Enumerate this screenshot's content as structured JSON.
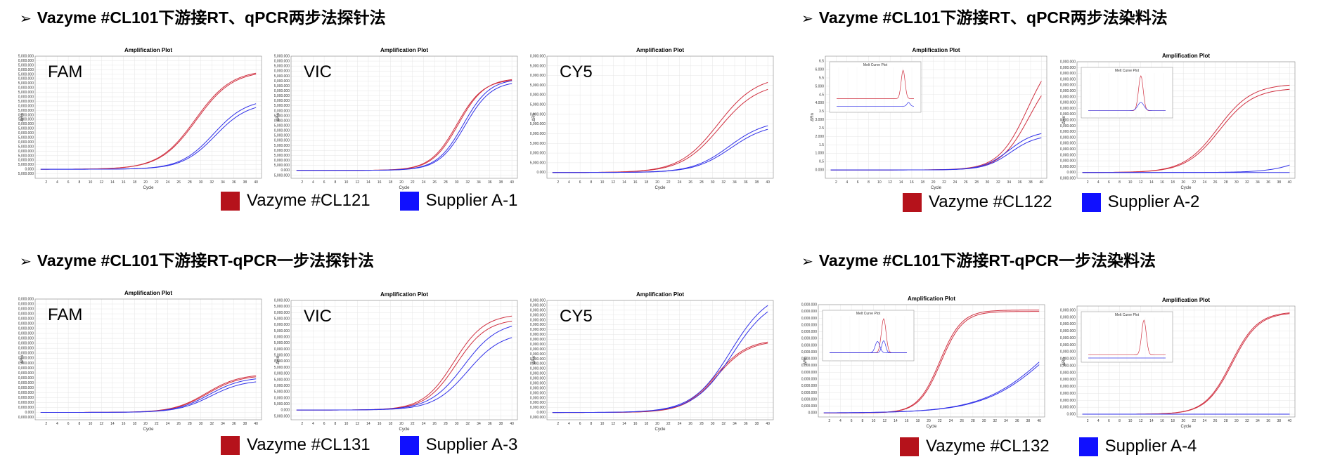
{
  "colors": {
    "vazyme": "#B5121B",
    "supplier": "#1010FF",
    "curve_red": "#D03040",
    "curve_blue": "#3030E8"
  },
  "headings": [
    {
      "text": "Vazyme #CL101下游接RT、qPCR两步法探针法"
    },
    {
      "text": "Vazyme #CL101下游接RT、qPCR两步法染料法"
    },
    {
      "text": "Vazyme #CL101下游接RT-qPCR一步法探针法"
    },
    {
      "text": "Vazyme #CL101下游接RT-qPCR一步法染料法"
    }
  ],
  "legends": [
    {
      "vazyme": "Vazyme #CL121",
      "supplier": "Supplier A-1"
    },
    {
      "vazyme": "Vazyme #CL122",
      "supplier": "Supplier A-2"
    },
    {
      "vazyme": "Vazyme #CL131",
      "supplier": "Supplier A-3"
    },
    {
      "vazyme": "Vazyme #CL132",
      "supplier": "Supplier A-4"
    }
  ],
  "chart_data": [
    {
      "type": "line",
      "title": "Amplification Plot",
      "xlabel": "Cycle",
      "ylabel": "ΔRn",
      "label": "FAM",
      "xlim": [
        0,
        41
      ],
      "ylim": [
        -10000,
        125000
      ],
      "yticks": [
        -5000,
        0,
        5000,
        10000,
        15000,
        20000,
        25000,
        30000,
        35000,
        40000,
        45000,
        50000,
        55000,
        60000,
        65000,
        70000,
        75000,
        80000,
        85000,
        90000,
        95000,
        100000,
        105000,
        110000,
        115000,
        120000,
        125000
      ],
      "series": [
        {
          "group": "vazyme",
          "plateau": 110000,
          "midpoint": 29.0,
          "slope": 3.3
        },
        {
          "group": "vazyme",
          "plateau": 109000,
          "midpoint": 29.2,
          "slope": 3.3
        },
        {
          "group": "supplier",
          "plateau": 78000,
          "midpoint": 32.3,
          "slope": 3.0
        },
        {
          "group": "supplier",
          "plateau": 74000,
          "midpoint": 32.6,
          "slope": 3.0
        }
      ]
    },
    {
      "type": "line",
      "title": "Amplification Plot",
      "xlabel": "Cycle",
      "ylabel": "ΔRn",
      "label": "VIC",
      "xlim": [
        0,
        41
      ],
      "ylim": [
        -8000,
        115000
      ],
      "yticks": [
        -5000,
        0,
        5000,
        10000,
        15000,
        20000,
        25000,
        30000,
        35000,
        40000,
        45000,
        50000,
        55000,
        60000,
        65000,
        70000,
        75000,
        80000,
        85000,
        90000,
        95000,
        100000,
        105000,
        110000,
        115000
      ],
      "series": [
        {
          "group": "vazyme",
          "plateau": 92000,
          "midpoint": 30.0,
          "slope": 2.4
        },
        {
          "group": "vazyme",
          "plateau": 93000,
          "midpoint": 30.3,
          "slope": 2.4
        },
        {
          "group": "supplier",
          "plateau": 92500,
          "midpoint": 31.2,
          "slope": 2.4
        },
        {
          "group": "supplier",
          "plateau": 90000,
          "midpoint": 31.5,
          "slope": 2.4
        }
      ]
    },
    {
      "type": "line",
      "title": "Amplification Plot",
      "xlabel": "Cycle",
      "ylabel": "ΔRn",
      "label": "CY5",
      "xlim": [
        0,
        41
      ],
      "ylim": [
        -15000,
        300000
      ],
      "yticks": [
        0,
        25000,
        50000,
        75000,
        100000,
        125000,
        150000,
        175000,
        200000,
        225000,
        250000,
        275000,
        300000
      ],
      "series": [
        {
          "group": "vazyme",
          "plateau": 250000,
          "midpoint": 31.0,
          "slope": 3.5
        },
        {
          "group": "vazyme",
          "plateau": 232000,
          "midpoint": 31.3,
          "slope": 3.5
        },
        {
          "group": "supplier",
          "plateau": 135000,
          "midpoint": 33.0,
          "slope": 3.3
        },
        {
          "group": "supplier",
          "plateau": 126000,
          "midpoint": 33.3,
          "slope": 3.3
        }
      ]
    },
    {
      "type": "line",
      "title": "Amplification Plot",
      "xlabel": "Cycle",
      "ylabel": "ΔRn",
      "label": "",
      "xlim": [
        0,
        41
      ],
      "ylim": [
        -0.5,
        6.8
      ],
      "yticks": [
        0,
        0.5,
        1,
        1.5,
        2,
        2.5,
        3,
        3.5,
        4,
        4.5,
        5,
        5.5,
        6,
        6.5
      ],
      "series": [
        {
          "group": "vazyme",
          "plateau": 7.4,
          "midpoint": 37.5,
          "slope": 2.7
        },
        {
          "group": "vazyme",
          "plateau": 6.4,
          "midpoint": 37.8,
          "slope": 2.7
        },
        {
          "group": "supplier",
          "plateau": 2.35,
          "midpoint": 34.0,
          "slope": 2.4
        },
        {
          "group": "supplier",
          "plateau": 2.1,
          "midpoint": 34.3,
          "slope": 2.4
        }
      ],
      "inset": {
        "title": "Melt Curve Plot",
        "series": [
          {
            "group": "vazyme",
            "base": 0.25,
            "peak": 1.0,
            "pos": 0.86,
            "width": 0.025
          },
          {
            "group": "supplier",
            "base": 0.05,
            "peak": 0.15,
            "pos": 0.93,
            "width": 0.02
          }
        ]
      }
    },
    {
      "type": "line",
      "title": "Amplification Plot",
      "xlabel": "Cycle",
      "ylabel": "ΔRn",
      "label": "",
      "xlim": [
        0,
        41
      ],
      "ylim": [
        -50000,
        950000
      ],
      "yticks": [
        -50000,
        0,
        50000,
        100000,
        150000,
        200000,
        250000,
        300000,
        350000,
        400000,
        450000,
        500000,
        550000,
        600000,
        650000,
        700000,
        750000,
        800000,
        850000,
        900000,
        950000
      ],
      "series": [
        {
          "group": "vazyme",
          "plateau": 760000,
          "midpoint": 26.5,
          "slope": 3.2
        },
        {
          "group": "vazyme",
          "plateau": 725000,
          "midpoint": 26.8,
          "slope": 3.2
        },
        {
          "group": "supplier",
          "plateau": 420000,
          "midpoint": 46.0,
          "slope": 3.5
        },
        {
          "group": "supplier",
          "plateau": 0,
          "midpoint": 60,
          "slope": 3
        }
      ],
      "inset": {
        "title": "Melt Curve Plot",
        "series": [
          {
            "group": "vazyme",
            "base": 0.08,
            "peak": 1.0,
            "pos": 0.68,
            "width": 0.03
          },
          {
            "group": "supplier",
            "base": 0.08,
            "peak": 0.3,
            "pos": 0.68,
            "width": 0.04
          }
        ]
      }
    },
    {
      "type": "line",
      "title": "Amplification Plot",
      "xlabel": "Cycle",
      "ylabel": "ΔRn",
      "label": "FAM",
      "xlim": [
        0,
        41
      ],
      "ylim": [
        -15000,
        230000
      ],
      "yticks": [
        -10000,
        0,
        10000,
        20000,
        30000,
        40000,
        50000,
        60000,
        70000,
        80000,
        90000,
        100000,
        110000,
        120000,
        130000,
        140000,
        150000,
        160000,
        170000,
        180000,
        190000,
        200000,
        210000,
        220000,
        230000
      ],
      "series": [
        {
          "group": "vazyme",
          "plateau": 78000,
          "midpoint": 31.0,
          "slope": 3.0
        },
        {
          "group": "vazyme",
          "plateau": 76000,
          "midpoint": 31.2,
          "slope": 3.0
        },
        {
          "group": "supplier",
          "plateau": 72000,
          "midpoint": 31.5,
          "slope": 3.0
        },
        {
          "group": "supplier",
          "plateau": 66000,
          "midpoint": 31.8,
          "slope": 3.0
        }
      ]
    },
    {
      "type": "line",
      "title": "Amplification Plot",
      "xlabel": "Cycle",
      "ylabel": "ΔRn",
      "label": "VIC",
      "xlim": [
        0,
        41
      ],
      "ylim": [
        -8000,
        90000
      ],
      "yticks": [
        -5000,
        0,
        5000,
        10000,
        15000,
        20000,
        25000,
        30000,
        35000,
        40000,
        45000,
        50000,
        55000,
        60000,
        65000,
        70000,
        75000,
        80000,
        85000,
        90000
      ],
      "series": [
        {
          "group": "vazyme",
          "plateau": 79000,
          "midpoint": 29.5,
          "slope": 2.8
        },
        {
          "group": "vazyme",
          "plateau": 75000,
          "midpoint": 29.9,
          "slope": 2.8
        },
        {
          "group": "supplier",
          "plateau": 73000,
          "midpoint": 31.3,
          "slope": 3.1
        },
        {
          "group": "supplier",
          "plateau": 64000,
          "midpoint": 32.0,
          "slope": 3.1
        }
      ]
    },
    {
      "type": "line",
      "title": "Amplification Plot",
      "xlabel": "Cycle",
      "ylabel": "ΔRn",
      "label": "CY5",
      "xlim": [
        0,
        41
      ],
      "ylim": [
        -15000,
        230000
      ],
      "yticks": [
        -10000,
        0,
        10000,
        20000,
        30000,
        40000,
        50000,
        60000,
        70000,
        80000,
        90000,
        100000,
        110000,
        120000,
        130000,
        140000,
        150000,
        160000,
        170000,
        180000,
        190000,
        200000,
        210000,
        220000,
        230000
      ],
      "series": [
        {
          "group": "vazyme",
          "plateau": 150000,
          "midpoint": 30.5,
          "slope": 2.9
        },
        {
          "group": "vazyme",
          "plateau": 148000,
          "midpoint": 30.7,
          "slope": 2.9
        },
        {
          "group": "supplier",
          "plateau": 252000,
          "midpoint": 33.3,
          "slope": 3.5
        },
        {
          "group": "supplier",
          "plateau": 240000,
          "midpoint": 33.6,
          "slope": 3.5
        }
      ]
    },
    {
      "type": "line",
      "title": "Amplification Plot",
      "xlabel": "Cycle",
      "ylabel": "ΔRn",
      "label": "",
      "xlim": [
        0,
        41
      ],
      "ylim": [
        -30000,
        800000
      ],
      "yticks": [
        0,
        50000,
        100000,
        150000,
        200000,
        250000,
        300000,
        350000,
        400000,
        450000,
        500000,
        550000,
        600000,
        650000,
        700000,
        750000,
        800000
      ],
      "series": [
        {
          "group": "vazyme",
          "plateau": 760000,
          "midpoint": 22.0,
          "slope": 2.0
        },
        {
          "group": "vazyme",
          "plateau": 750000,
          "midpoint": 22.2,
          "slope": 2.0
        },
        {
          "group": "supplier",
          "plateau": 900000,
          "midpoint": 42.0,
          "slope": 6.0
        },
        {
          "group": "supplier",
          "plateau": 880000,
          "midpoint": 42.3,
          "slope": 6.0
        }
      ],
      "inset": {
        "title": "Melt Curve Plot",
        "series": [
          {
            "group": "vazyme",
            "base": 0.1,
            "peak": 1.0,
            "pos": 0.7,
            "width": 0.03
          },
          {
            "group": "supplier",
            "base": 0.1,
            "peak": 0.4,
            "pos": 0.62,
            "width": 0.03
          },
          {
            "group": "supplier",
            "base": 0.1,
            "peak": 0.42,
            "pos": 0.7,
            "width": 0.025
          }
        ]
      }
    },
    {
      "type": "line",
      "title": "Amplification Plot",
      "xlabel": "Cycle",
      "ylabel": "ΔRn",
      "label": "",
      "xlim": [
        0,
        41
      ],
      "ylim": [
        -20000,
        780000
      ],
      "yticks": [
        0,
        50000,
        100000,
        150000,
        200000,
        250000,
        300000,
        350000,
        400000,
        450000,
        500000,
        550000,
        600000,
        650000,
        700000,
        750000
      ],
      "series": [
        {
          "group": "vazyme",
          "plateau": 740000,
          "midpoint": 29.0,
          "slope": 2.5
        },
        {
          "group": "vazyme",
          "plateau": 735000,
          "midpoint": 29.2,
          "slope": 2.5
        },
        {
          "group": "supplier",
          "plateau": 0,
          "midpoint": 60,
          "slope": 3
        },
        {
          "group": "supplier",
          "plateau": 0,
          "midpoint": 60,
          "slope": 3
        }
      ],
      "inset": {
        "title": "Melt Curve Plot",
        "series": [
          {
            "group": "vazyme",
            "base": 0.08,
            "peak": 1.0,
            "pos": 0.72,
            "width": 0.03
          },
          {
            "group": "supplier",
            "base": 0.0,
            "peak": 0.0,
            "pos": 0.72,
            "width": 0.03
          }
        ]
      }
    }
  ]
}
